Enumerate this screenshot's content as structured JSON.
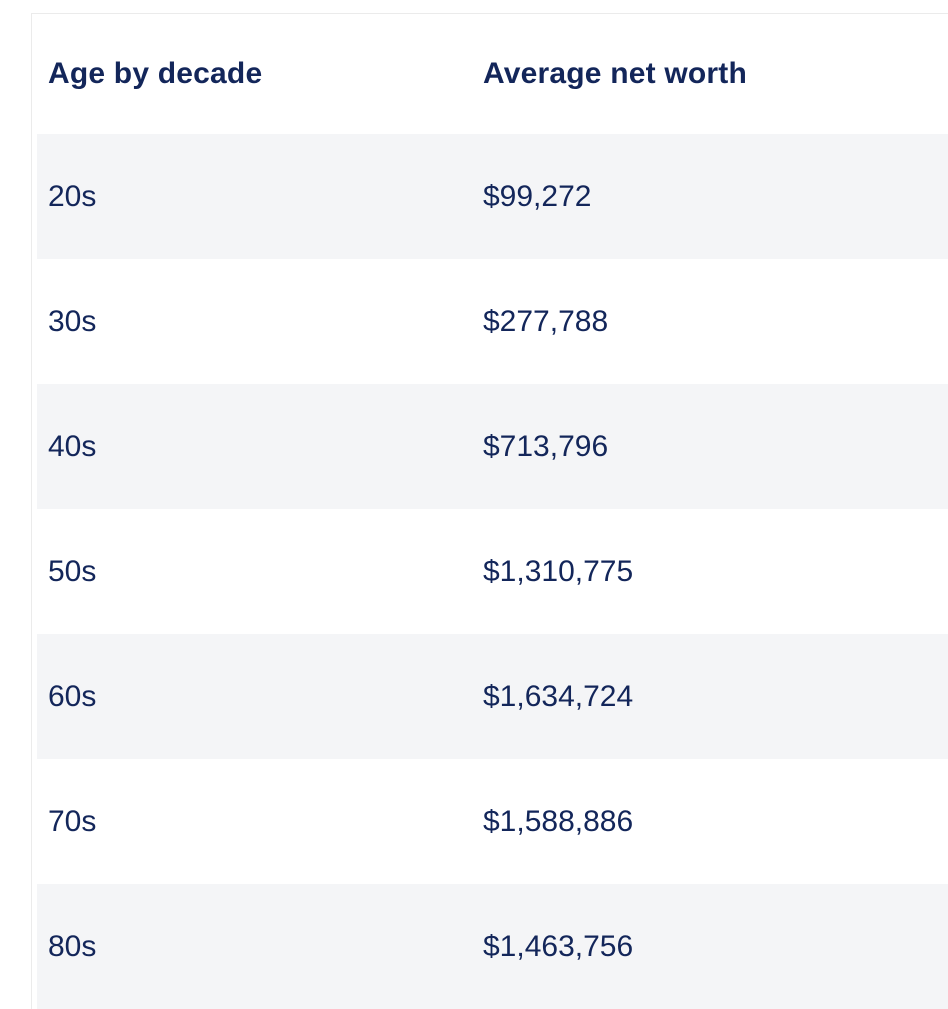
{
  "table": {
    "columns": [
      {
        "label": "Age by decade"
      },
      {
        "label": "Average net worth"
      }
    ],
    "rows": [
      {
        "age": "20s",
        "net_worth": "$99,272"
      },
      {
        "age": "30s",
        "net_worth": "$277,788"
      },
      {
        "age": "40s",
        "net_worth": "$713,796"
      },
      {
        "age": "50s",
        "net_worth": "$1,310,775"
      },
      {
        "age": "60s",
        "net_worth": "$1,634,724"
      },
      {
        "age": "70s",
        "net_worth": "$1,588,886"
      },
      {
        "age": "80s",
        "net_worth": "$1,463,756"
      }
    ]
  },
  "chart_data": {
    "type": "table",
    "title": "",
    "columns": [
      "Age by decade",
      "Average net worth"
    ],
    "categories": [
      "20s",
      "30s",
      "40s",
      "50s",
      "60s",
      "70s",
      "80s"
    ],
    "values": [
      99272,
      277788,
      713796,
      1310775,
      1634724,
      1588886,
      1463756
    ],
    "values_formatted": [
      "$99,272",
      "$277,788",
      "$713,796",
      "$1,310,775",
      "$1,634,724",
      "$1,588,886",
      "$1,463,756"
    ],
    "layout": "zebra-striped table, first data row shaded, cropped at right and bottom edges"
  },
  "colors": {
    "text_navy": "#13265a",
    "row_stripe": "#f4f5f7",
    "row_plain": "#ffffff",
    "table_border": "#ebebeb",
    "page_background": "#ffffff"
  }
}
